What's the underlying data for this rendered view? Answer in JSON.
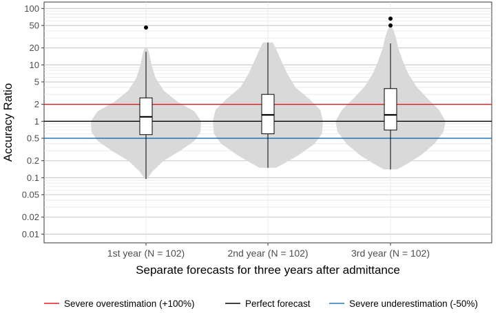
{
  "chart_data": {
    "type": "violin",
    "title": "",
    "xlabel": "Separate forecasts for three years after admittance",
    "ylabel": "Accuracy Ratio",
    "y_scale": "log10",
    "ylim": [
      0.007,
      130
    ],
    "yticks": [
      100,
      50,
      20,
      10,
      5,
      2,
      1,
      0.5,
      0.2,
      0.1,
      0.05,
      0.02,
      0.01
    ],
    "ytick_labels": [
      "100",
      "50",
      "20",
      "10",
      "5",
      "2",
      "1",
      "0.5",
      "0.2",
      "0.1",
      "0.05",
      "0.02",
      "0.01"
    ],
    "categories": [
      "1st year (N = 102)",
      "2nd year (N = 102)",
      "3rd year (N = 102)"
    ],
    "grid": true,
    "legend_position": "bottom",
    "reference_lines": [
      {
        "label": "Severe overestimation (+100%)",
        "value": 2,
        "color": "#e41a1c"
      },
      {
        "label": "Perfect forecast",
        "value": 1,
        "color": "#000000"
      },
      {
        "label": "Severe underestimation (-50%)",
        "value": 0.5,
        "color": "#1f78b4"
      }
    ],
    "series": [
      {
        "category": "1st year (N = 102)",
        "box": {
          "q1": 0.58,
          "median": 1.2,
          "q3": 2.6,
          "whisker_low": 0.095,
          "whisker_high": 17
        },
        "outliers": [
          46
        ],
        "density": [
          [
            0.095,
            0.02
          ],
          [
            0.13,
            0.12
          ],
          [
            0.2,
            0.32
          ],
          [
            0.3,
            0.62
          ],
          [
            0.45,
            0.88
          ],
          [
            0.65,
            0.99
          ],
          [
            1.0,
            1.0
          ],
          [
            1.5,
            0.88
          ],
          [
            2.2,
            0.58
          ],
          [
            3.5,
            0.32
          ],
          [
            6.0,
            0.17
          ],
          [
            10,
            0.1
          ],
          [
            17,
            0.05
          ],
          [
            20,
            0.02
          ]
        ]
      },
      {
        "category": "2nd year (N = 102)",
        "box": {
          "q1": 0.6,
          "median": 1.3,
          "q3": 3.0,
          "whisker_low": 0.15,
          "whisker_high": 25
        },
        "outliers": [],
        "density": [
          [
            0.15,
            0.15
          ],
          [
            0.18,
            0.3
          ],
          [
            0.25,
            0.55
          ],
          [
            0.4,
            0.85
          ],
          [
            0.6,
            0.98
          ],
          [
            1.0,
            1.0
          ],
          [
            1.6,
            0.95
          ],
          [
            2.5,
            0.75
          ],
          [
            4.0,
            0.5
          ],
          [
            7.0,
            0.35
          ],
          [
            12,
            0.24
          ],
          [
            18,
            0.16
          ],
          [
            25,
            0.09
          ]
        ]
      },
      {
        "category": "3rd year (N = 102)",
        "box": {
          "q1": 0.7,
          "median": 1.3,
          "q3": 3.8,
          "whisker_low": 0.14,
          "whisker_high": 24
        },
        "outliers": [
          50,
          66
        ],
        "density": [
          [
            0.14,
            0.12
          ],
          [
            0.18,
            0.32
          ],
          [
            0.25,
            0.55
          ],
          [
            0.4,
            0.8
          ],
          [
            0.65,
            0.96
          ],
          [
            1.0,
            1.0
          ],
          [
            1.6,
            0.88
          ],
          [
            2.5,
            0.68
          ],
          [
            4.0,
            0.48
          ],
          [
            7.0,
            0.32
          ],
          [
            12,
            0.22
          ],
          [
            20,
            0.14
          ],
          [
            30,
            0.1
          ],
          [
            40,
            0.06
          ],
          [
            48,
            0.02
          ]
        ]
      }
    ]
  }
}
